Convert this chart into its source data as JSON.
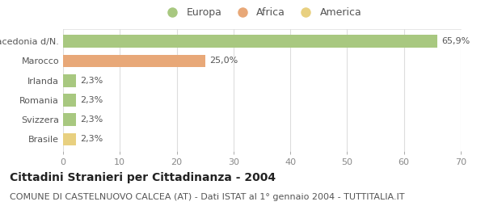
{
  "categories": [
    "Brasile",
    "Svizzera",
    "Romania",
    "Irlanda",
    "Marocco",
    "Macedonia d/N."
  ],
  "values": [
    2.3,
    2.3,
    2.3,
    2.3,
    25.0,
    65.9
  ],
  "bar_colors": [
    "#e8d080",
    "#a8c880",
    "#a8c880",
    "#a8c880",
    "#e8a878",
    "#a8c880"
  ],
  "labels": [
    "2,3%",
    "2,3%",
    "2,3%",
    "2,3%",
    "25,0%",
    "65,9%"
  ],
  "xlim": [
    0,
    70
  ],
  "xticks": [
    0,
    10,
    20,
    30,
    40,
    50,
    60,
    70
  ],
  "title": "Cittadini Stranieri per Cittadinanza - 2004",
  "subtitle": "COMUNE DI CASTELNUOVO CALCEA (AT) - Dati ISTAT al 1° gennaio 2004 - TUTTITALIA.IT",
  "legend_labels": [
    "Europa",
    "Africa",
    "America"
  ],
  "legend_colors": [
    "#a8c880",
    "#e8a878",
    "#e8d080"
  ],
  "bg_color": "#ffffff",
  "plot_bg_color": "#ffffff",
  "grid_color": "#dddddd",
  "title_fontsize": 10,
  "subtitle_fontsize": 8,
  "label_fontsize": 8,
  "tick_fontsize": 8,
  "legend_fontsize": 9
}
